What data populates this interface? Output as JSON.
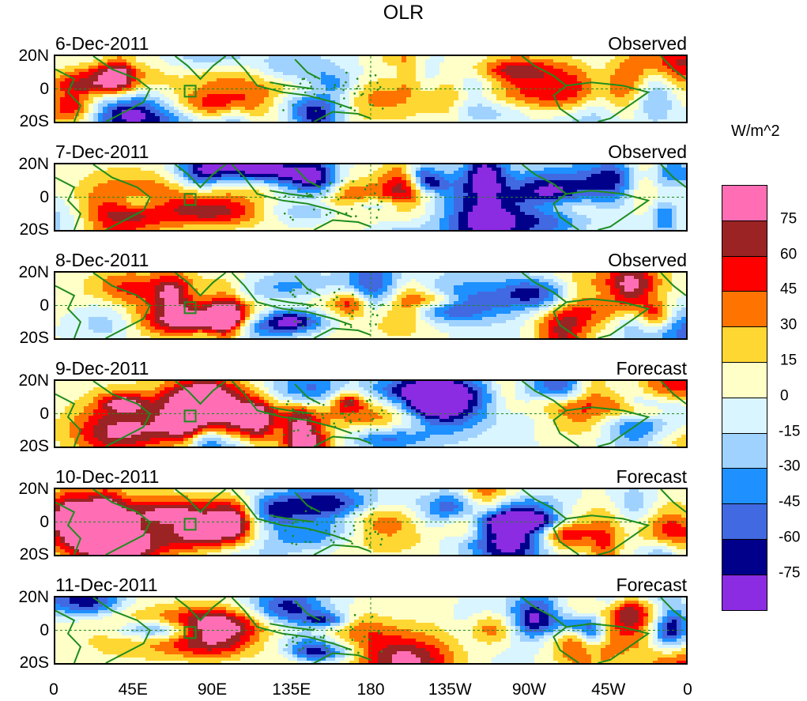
{
  "title": "OLR",
  "units": "W/m^2",
  "lat_labels": [
    "20N",
    "0",
    "20S"
  ],
  "lon_labels": [
    "0",
    "45E",
    "90E",
    "135E",
    "180",
    "135W",
    "90W",
    "45W",
    "0"
  ],
  "panels": [
    {
      "date": "6-Dec-2011",
      "kind": "Observed"
    },
    {
      "date": "7-Dec-2011",
      "kind": "Observed"
    },
    {
      "date": "8-Dec-2011",
      "kind": "Observed"
    },
    {
      "date": "9-Dec-2011",
      "kind": "Forecast"
    },
    {
      "date": "10-Dec-2011",
      "kind": "Forecast"
    },
    {
      "date": "11-Dec-2011",
      "kind": "Forecast"
    }
  ],
  "colorbar": {
    "colors": [
      "#ff6eb4",
      "#9b2323",
      "#ff0000",
      "#ff7400",
      "#ffd733",
      "#ffffc8",
      "#d9f5ff",
      "#a0d2ff",
      "#1e90ff",
      "#4169e1",
      "#00008b",
      "#8b2be2"
    ],
    "labels": [
      "75",
      "60",
      "45",
      "30",
      "15",
      "0",
      "-15",
      "-30",
      "-45",
      "-60",
      "-75"
    ]
  },
  "land_color": "#1e8c1e"
}
